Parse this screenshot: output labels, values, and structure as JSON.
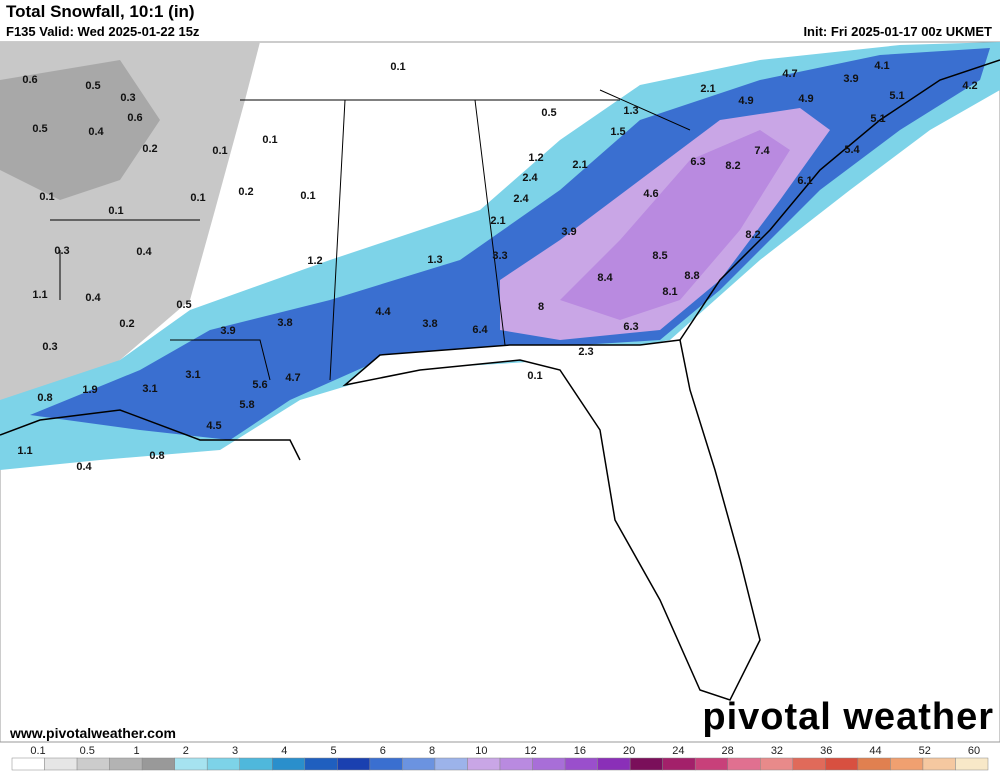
{
  "header": {
    "title": "Total Snowfall, 10:1 (in)",
    "valid": "F135 Valid: Wed 2025-01-22 15z",
    "init": "Init: Fri 2025-01-17 00z UKMET"
  },
  "footer": {
    "website": "www.pivotalweather.com",
    "logo": "pivotal weather"
  },
  "map_labels": [
    0.1,
    0.6,
    0.5,
    0.3,
    0.6,
    0.5,
    0.4,
    0.2,
    0.1,
    0.1,
    0.2,
    0.1,
    0.1,
    0.1,
    0.1,
    0.3,
    0.4,
    1.2,
    1.3,
    1.1,
    0.4,
    0.5,
    0.2,
    3.9,
    3.8,
    4.4,
    3.8,
    6.4,
    0.3,
    3.1,
    5.6,
    4.7,
    1.9,
    3.1,
    0.8,
    5.8,
    4.5,
    1.1,
    0.8,
    0.4,
    0.1,
    2.3,
    0.5,
    1.3,
    1.5,
    2.1,
    4.9,
    4.7,
    3.9,
    4.1,
    4.2,
    4.9,
    5.1,
    5.1,
    5.4,
    6.1,
    7.4,
    8.2,
    6.3,
    4.6,
    1.2,
    2.1,
    2.4,
    2.4,
    2.1,
    3.9,
    3.3,
    8.2,
    8.5,
    8.4,
    8.8,
    8.1,
    8.0,
    6.3
  ],
  "colorbar": {
    "ticks": [
      0.1,
      0.5,
      1,
      2,
      3,
      4,
      5,
      6,
      8,
      10,
      12,
      16,
      20,
      24,
      28,
      32,
      36,
      44,
      52,
      60
    ],
    "colors": [
      "#ffffff",
      "#e6e6e6",
      "#cccccc",
      "#b3b3b3",
      "#999999",
      "#a6e3f0",
      "#7dd3e8",
      "#4fb8dc",
      "#2a8fcc",
      "#1f5fbf",
      "#1a40b0",
      "#3a6fd0",
      "#6b93e0",
      "#9cb3ea",
      "#c9a6e6",
      "#b98ae0",
      "#a86ed8",
      "#9a4fcc",
      "#8a2fb8",
      "#7a0f5a",
      "#a3206a",
      "#c8407a",
      "#e07090",
      "#e88a8a",
      "#e06a5a",
      "#d85040",
      "#e08050",
      "#f0a070",
      "#f5c8a0",
      "#f8e8c8"
    ]
  }
}
